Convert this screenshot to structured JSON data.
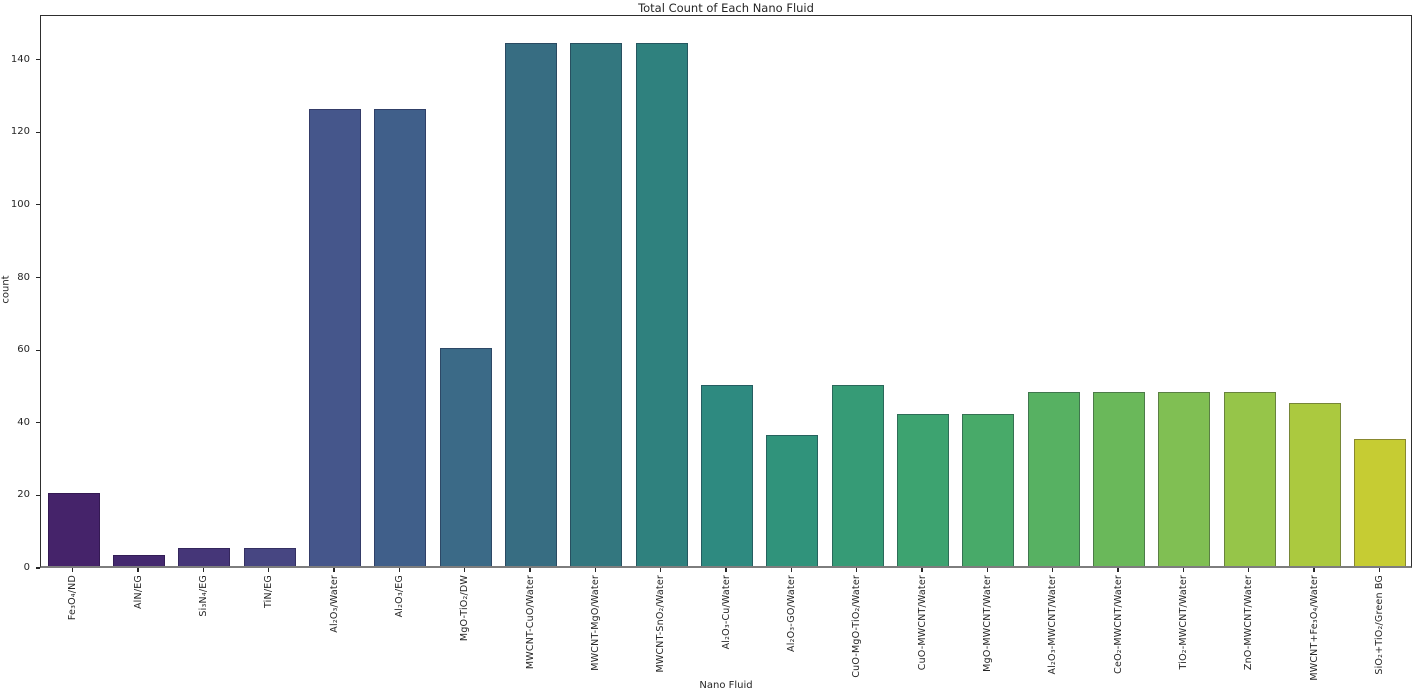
{
  "chart_data": {
    "type": "bar",
    "title": "Total Count of Each Nano Fluid",
    "xlabel": "Nano Fluid",
    "ylabel": "count",
    "categories": [
      "Fe₃O₄/ND",
      "AlN/EG",
      "Si₃N₄/EG",
      "TiN/EG",
      "Al₂O₃/Water",
      "Al₂O₃/EG",
      "MgO-TiO₂/DW",
      "MWCNT-CuO/Water",
      "MWCNT-MgO/Water",
      "MWCNT-SnO₂/Water",
      "Al₂O₃-Cu/Water",
      "Al₂O₃-GO/Water",
      "CuO-MgO-TiO₂/Water",
      "CuO-MWCNT/Water",
      "MgO-MWCNT/Water",
      "Al₂O₃-MWCNT/Water",
      "CeO₂-MWCNT/Water",
      "TiO₂-MWCNT/Water",
      "ZnO-MWCNT/Water",
      "MWCNT+Fe₃O₄/Water",
      "SiO₂+TiO₂/Green BG"
    ],
    "values": [
      20,
      3,
      5,
      5,
      126,
      126,
      60,
      144,
      144,
      144,
      50,
      36,
      50,
      42,
      42,
      48,
      48,
      48,
      48,
      45,
      35
    ],
    "bar_colors": [
      "#45236a",
      "#44296f",
      "#453678",
      "#474682",
      "#45568b",
      "#405f8a",
      "#3b6a87",
      "#376d82",
      "#33777f",
      "#2f817e",
      "#2e8a80",
      "#30937b",
      "#369b76",
      "#3da370",
      "#48aa69",
      "#57b162",
      "#6ab85a",
      "#80bf53",
      "#96c549",
      "#abc93f",
      "#c6cc33"
    ],
    "yticks": [
      0,
      20,
      40,
      60,
      80,
      100,
      120,
      140
    ],
    "ylim": [
      0,
      152.3
    ],
    "x_tick_rotation": 90,
    "grid": false,
    "legend_position": "none"
  }
}
